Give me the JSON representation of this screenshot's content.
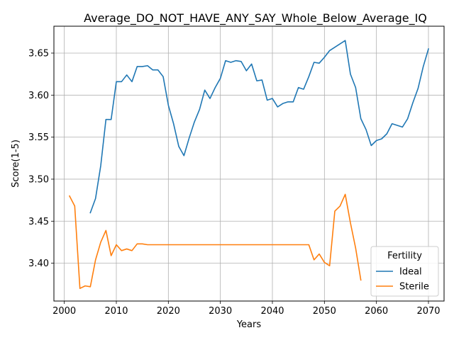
{
  "chart_data": {
    "type": "line",
    "title": "Average_DO_NOT_HAVE_ANY_SAY_Whole_Below_Average_IQ",
    "xlabel": "Years",
    "ylabel": "Score(1-5)",
    "xlim": [
      1998,
      2073
    ],
    "ylim": [
      3.355,
      3.682
    ],
    "xticks": [
      2000,
      2010,
      2020,
      2030,
      2040,
      2050,
      2060,
      2070
    ],
    "yticks": [
      3.4,
      3.45,
      3.5,
      3.55,
      3.6,
      3.65
    ],
    "ytick_labels": [
      "3.40",
      "3.45",
      "3.50",
      "3.55",
      "3.60",
      "3.65"
    ],
    "grid": true,
    "legend": {
      "title": "Fertility",
      "placement": "bottom-right"
    },
    "series": [
      {
        "name": "Ideal",
        "color": "#1f77b4",
        "x": [
          2005,
          2006,
          2007,
          2008,
          2009,
          2010,
          2011,
          2012,
          2013,
          2014,
          2015,
          2016,
          2017,
          2018,
          2019,
          2020,
          2021,
          2022,
          2023,
          2024,
          2025,
          2026,
          2027,
          2028,
          2029,
          2030,
          2031,
          2032,
          2033,
          2034,
          2035,
          2036,
          2037,
          2038,
          2039,
          2040,
          2041,
          2042,
          2043,
          2044,
          2045,
          2046,
          2047,
          2048,
          2049,
          2050,
          2051,
          2052,
          2053,
          2054,
          2055,
          2056,
          2057,
          2058,
          2059,
          2060,
          2061,
          2062,
          2063,
          2064,
          2065,
          2066,
          2067,
          2068,
          2069,
          2070
        ],
        "values": [
          3.46,
          3.477,
          3.516,
          3.571,
          3.571,
          3.616,
          3.616,
          3.624,
          3.616,
          3.634,
          3.634,
          3.635,
          3.63,
          3.63,
          3.622,
          3.588,
          3.566,
          3.539,
          3.528,
          3.549,
          3.568,
          3.583,
          3.606,
          3.596,
          3.609,
          3.62,
          3.641,
          3.639,
          3.641,
          3.64,
          3.629,
          3.637,
          3.617,
          3.618,
          3.594,
          3.596,
          3.586,
          3.59,
          3.592,
          3.592,
          3.609,
          3.607,
          3.622,
          3.639,
          3.638,
          3.645,
          3.653,
          3.657,
          3.661,
          3.665,
          3.625,
          3.609,
          3.572,
          3.559,
          3.54,
          3.546,
          3.548,
          3.554,
          3.566,
          3.564,
          3.562,
          3.572,
          3.591,
          3.608,
          3.634,
          3.655
        ]
      },
      {
        "name": "Sterile",
        "color": "#ff7f0e",
        "x": [
          2001,
          2002,
          2003,
          2004,
          2005,
          2006,
          2007,
          2008,
          2009,
          2010,
          2011,
          2012,
          2013,
          2014,
          2015,
          2016,
          2017,
          2018,
          2019,
          2020,
          2021,
          2022,
          2023,
          2024,
          2025,
          2026,
          2027,
          2028,
          2029,
          2030,
          2031,
          2032,
          2033,
          2034,
          2035,
          2036,
          2037,
          2038,
          2039,
          2040,
          2041,
          2042,
          2043,
          2044,
          2045,
          2046,
          2047,
          2048,
          2049,
          2050,
          2051,
          2052,
          2053,
          2054,
          2055,
          2056,
          2057
        ],
        "values": [
          3.48,
          3.468,
          3.37,
          3.373,
          3.372,
          3.404,
          3.425,
          3.439,
          3.409,
          3.422,
          3.415,
          3.417,
          3.415,
          3.423,
          3.423,
          3.422,
          3.422,
          3.422,
          3.422,
          3.422,
          3.422,
          3.422,
          3.422,
          3.422,
          3.422,
          3.422,
          3.422,
          3.422,
          3.422,
          3.422,
          3.422,
          3.422,
          3.422,
          3.422,
          3.422,
          3.422,
          3.422,
          3.422,
          3.422,
          3.422,
          3.422,
          3.422,
          3.422,
          3.422,
          3.422,
          3.422,
          3.422,
          3.404,
          3.411,
          3.401,
          3.397,
          3.462,
          3.468,
          3.482,
          3.448,
          3.418,
          3.38
        ]
      }
    ]
  }
}
